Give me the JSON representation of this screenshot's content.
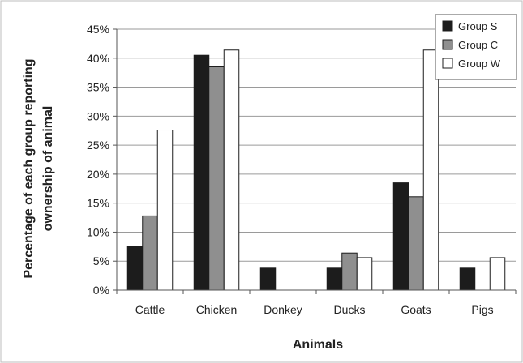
{
  "chart_data": {
    "type": "bar",
    "title": "",
    "xlabel": "Animals",
    "ylabel_lines": [
      "Percentage of each group reporting",
      "ownership of animal"
    ],
    "categories": [
      "Cattle",
      "Chicken",
      "Donkey",
      "Ducks",
      "Goats",
      "Pigs"
    ],
    "series": [
      {
        "name": "Group S",
        "color": "#1c1c1c",
        "values": [
          7.5,
          40.5,
          3.8,
          3.8,
          18.5,
          3.8
        ]
      },
      {
        "name": "Group C",
        "color": "#8f8f8f",
        "values": [
          12.8,
          38.5,
          0,
          6.4,
          16.1,
          0
        ]
      },
      {
        "name": "Group W",
        "color": "#ffffff",
        "values": [
          27.6,
          41.4,
          0,
          5.6,
          41.4,
          5.6
        ]
      }
    ],
    "ylim": [
      0,
      45
    ],
    "yticks": [
      0,
      5,
      10,
      15,
      20,
      25,
      30,
      35,
      40,
      45
    ],
    "ytick_labels": [
      "0%",
      "5%",
      "10%",
      "15%",
      "20%",
      "25%",
      "30%",
      "35%",
      "40%",
      "45%"
    ],
    "grid": true,
    "legend_position": "top-right"
  }
}
